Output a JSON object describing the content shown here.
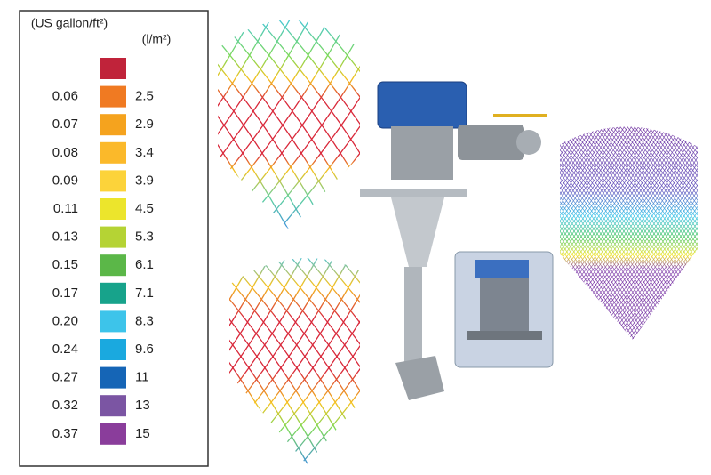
{
  "legend": {
    "us_unit": "(US gallon/ft²)",
    "metric_unit": "(l/m²)",
    "rows": [
      {
        "color": "#c0233a"
      },
      {
        "us": "0.06",
        "metric": "2.5",
        "color": "#f07a22"
      },
      {
        "us": "0.07",
        "metric": "2.9",
        "color": "#f5a31e"
      },
      {
        "us": "0.08",
        "metric": "3.4",
        "color": "#fbb92a"
      },
      {
        "us": "0.09",
        "metric": "3.9",
        "color": "#fcd33a"
      },
      {
        "us": "0.11",
        "metric": "4.5",
        "color": "#ece52c"
      },
      {
        "us": "0.13",
        "metric": "5.3",
        "color": "#b5d334"
      },
      {
        "us": "0.15",
        "metric": "6.1",
        "color": "#5bb748"
      },
      {
        "us": "0.17",
        "metric": "7.1",
        "color": "#17a38b"
      },
      {
        "us": "0.20",
        "metric": "8.3",
        "color": "#3dc4ea"
      },
      {
        "us": "0.24",
        "metric": "9.6",
        "color": "#1aa9df"
      },
      {
        "us": "0.27",
        "metric": "11",
        "color": "#1565b6"
      },
      {
        "us": "0.32",
        "metric": "13",
        "color": "#7b55a3"
      },
      {
        "us": "0.37",
        "metric": "15",
        "color": "#8a3d9b"
      }
    ]
  }
}
